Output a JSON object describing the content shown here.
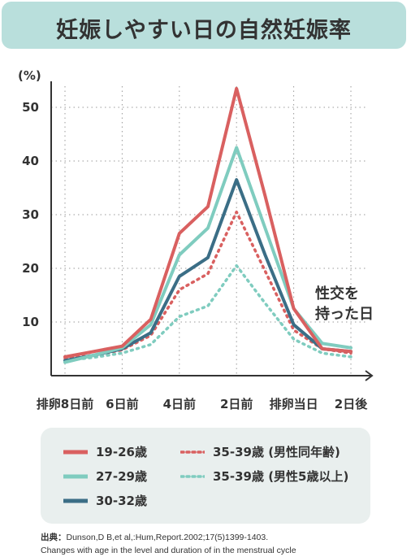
{
  "title": "妊娠しやすい日の自然妊娠率",
  "annotation": [
    "性交を",
    "持った日"
  ],
  "source": {
    "label": "出典：",
    "line1": "Dunson,D B,et al,:Hum,Report.2002;17(5)1399-1403.",
    "line2": "Changes with age in the level and duration of in the menstrual cycle"
  },
  "chart_data": {
    "type": "line",
    "ylabel": "(%)",
    "xlabel": "",
    "ylim": [
      0,
      57
    ],
    "yticks": [
      10,
      20,
      30,
      40,
      50
    ],
    "grid": true,
    "x": [
      "-8",
      "-7",
      "-6",
      "-5",
      "-4",
      "-3",
      "-2",
      "-1",
      "0",
      "+1",
      "+2"
    ],
    "xtick_labels": {
      "-8": "排卵8日前",
      "-6": "6日前",
      "-4": "4日前",
      "-2": "2日前",
      "0": "排卵当日",
      "+2": "2日後"
    },
    "series": [
      {
        "name": "19-26歳",
        "color": "#d96060",
        "style": "solid",
        "values": [
          3.5,
          4.5,
          5.5,
          10.5,
          26.5,
          31.5,
          53.5,
          33.5,
          12.5,
          5.0,
          4.5
        ]
      },
      {
        "name": "27-29歳",
        "color": "#7fccbf",
        "style": "solid",
        "values": [
          2.5,
          3.8,
          5.2,
          9.5,
          22.5,
          27.5,
          42.5,
          27.5,
          12.5,
          6.0,
          5.2
        ]
      },
      {
        "name": "30-32歳",
        "color": "#3b6e86",
        "style": "solid",
        "values": [
          2.8,
          3.8,
          5.0,
          8.0,
          18.5,
          22.0,
          36.5,
          22.5,
          9.5,
          5.0,
          4.5
        ]
      },
      {
        "name": "35-39歳 (男性同年齢)",
        "color": "#d96060",
        "style": "dotted",
        "values": [
          3.2,
          3.8,
          4.8,
          7.5,
          16.0,
          19.0,
          30.5,
          19.5,
          8.5,
          5.0,
          4.2
        ]
      },
      {
        "name": "35-39歳 (男性5歳以上)",
        "color": "#7fccbf",
        "style": "dotted",
        "values": [
          2.8,
          3.4,
          4.2,
          5.8,
          11.0,
          13.0,
          20.5,
          13.5,
          6.8,
          4.2,
          3.5
        ]
      }
    ],
    "legend_position": "bottom"
  }
}
